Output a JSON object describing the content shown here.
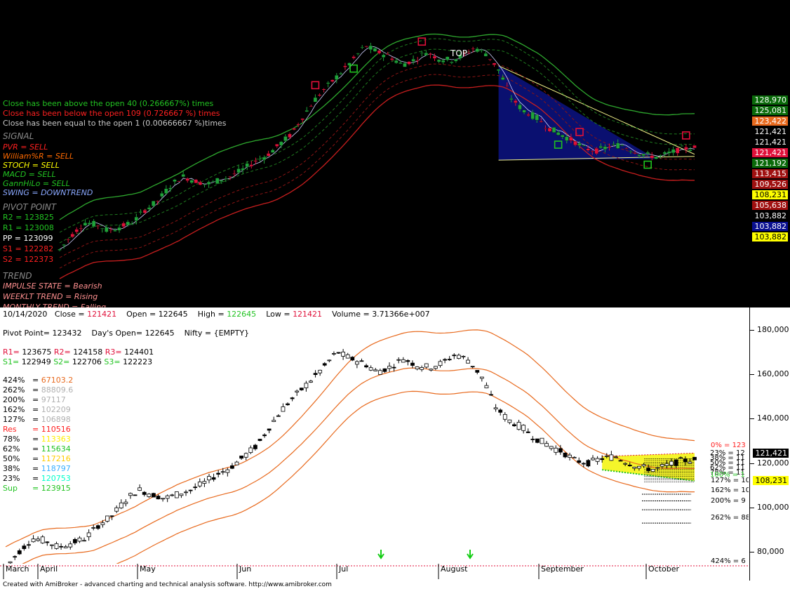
{
  "colors": {
    "up": "#1fa33a",
    "down": "#e0103a",
    "bb_outer": "#2ea82e",
    "bb_dash": "#1f7a1f",
    "red_band": "#c81e1e",
    "blue_fill": "#0a1070",
    "yellow": "#f5f52a",
    "orange": "#e86a1e"
  },
  "top_pane": {
    "stats": [
      {
        "text": "Close has been above the open 40 (0.266667%) times",
        "color": "#22c322"
      },
      {
        "text": "Close has been below the open 109 (0.726667 %) times",
        "color": "#ff2020"
      },
      {
        "text": "Close has been equal to the open 1 (0.00666667 %)times",
        "color": "#c8c8c8"
      }
    ],
    "signal_header": "SIGNAL",
    "signals": [
      {
        "text": "PVR = SELL",
        "color": "#ff2020"
      },
      {
        "text": "William%R = SELL",
        "color": "#ff6a00"
      },
      {
        "text": "STOCH = SELL",
        "color": "#ffff00"
      },
      {
        "text": "MACD = SELL",
        "color": "#22c322"
      },
      {
        "text": "GannHiLo = SELL",
        "color": "#22c322"
      },
      {
        "text": "SWING = DOWNTREND",
        "color": "#8aa8ff"
      }
    ],
    "pivot_header": "PIVOT POINT",
    "pivots": [
      {
        "text": "R2 = 123825",
        "color": "#22c322"
      },
      {
        "text": "R1 = 123008",
        "color": "#22c322"
      },
      {
        "text": "PP = 123099",
        "color": "#ffffff"
      },
      {
        "text": "S1 = 122282",
        "color": "#ff2020"
      },
      {
        "text": "S2 = 122373",
        "color": "#ff2020"
      }
    ],
    "trend_header": "TREND",
    "trends": [
      {
        "text": "IMPULSE STATE = Bearish",
        "color": "#ff9090"
      },
      {
        "text": "WEEKLT TREND = Rising",
        "color": "#ff9090"
      },
      {
        "text": "MONTHLY TREND = Falling",
        "color": "#ff9090"
      }
    ],
    "top_label": "TOP",
    "scale_tags": [
      {
        "text": "128,970",
        "bg": "#0a6a0a",
        "fg": "#ffffff"
      },
      {
        "text": "125,081",
        "bg": "#0a6a0a",
        "fg": "#ffffff"
      },
      {
        "text": "123,422",
        "bg": "#e86a1e",
        "fg": "#ffffff"
      },
      {
        "text": "121,421",
        "bg": "#000000",
        "fg": "#ffffff"
      },
      {
        "text": "121,421",
        "bg": "#000000",
        "fg": "#ffffff"
      },
      {
        "text": "121,421",
        "bg": "#e0103a",
        "fg": "#ffffff"
      },
      {
        "text": "121,192",
        "bg": "#0a6a0a",
        "fg": "#ffffff"
      },
      {
        "text": "113,415",
        "bg": "#a01010",
        "fg": "#ffffff"
      },
      {
        "text": "109,526",
        "bg": "#a01010",
        "fg": "#ffffff"
      },
      {
        "text": "108,231",
        "bg": "#ffff00",
        "fg": "#000000"
      },
      {
        "text": "105,638",
        "bg": "#a01010",
        "fg": "#ffffff"
      },
      {
        "text": "103,882",
        "bg": "#000000",
        "fg": "#ffffff"
      },
      {
        "text": "103,882",
        "bg": "#0a1090",
        "fg": "#ffffff"
      },
      {
        "text": "103,882",
        "bg": "#ffff00",
        "fg": "#000000"
      }
    ]
  },
  "bottom_pane": {
    "header": {
      "date": "10/14/2020",
      "close_label": "Close =",
      "close": "121421",
      "open_label": "Open =",
      "open": "122645",
      "high_label": "High =",
      "high": "122645",
      "low_label": "Low =",
      "low": "121421",
      "volume_label": "Volume =",
      "volume": "3.71366e+007"
    },
    "pivot_line": {
      "text1": "Pivot Point= 123432",
      "text2": "Day's Open= 122645",
      "text3": "Nifty = {EMPTY}"
    },
    "r_levels": [
      {
        "label": "R1=",
        "value": "123675"
      },
      {
        "label": "R2=",
        "value": "124158"
      },
      {
        "label": "R3=",
        "value": "124401"
      }
    ],
    "s_levels": [
      {
        "label": "S1=",
        "value": "122949"
      },
      {
        "label": "S2=",
        "value": "122706"
      },
      {
        "label": "S3=",
        "value": "122223"
      }
    ],
    "fib_levels": [
      {
        "label": "424%",
        "value": "67103.2",
        "color": "#e86a1e"
      },
      {
        "label": "262%",
        "value": "88809.6",
        "color": "#b0b0b0"
      },
      {
        "label": "200%",
        "value": "97117",
        "color": "#b0b0b0"
      },
      {
        "label": "162%",
        "value": "102209",
        "color": "#b0b0b0"
      },
      {
        "label": "127%",
        "value": "106898",
        "color": "#b0b0b0"
      },
      {
        "label": "Res",
        "value": "110516",
        "color": "#ff2020"
      },
      {
        "label": "78%",
        "value": "113363",
        "color": "#ffee00"
      },
      {
        "label": "62%",
        "value": "115634",
        "color": "#22c322"
      },
      {
        "label": "50%",
        "value": "117216",
        "color": "#ffcc00"
      },
      {
        "label": "38%",
        "value": "118797",
        "color": "#3ab0ff"
      },
      {
        "label": "23%",
        "value": "120753",
        "color": "#00ffcc"
      },
      {
        "label": "Sup",
        "value": "123915",
        "color": "#22c322"
      }
    ],
    "right_fibs": [
      {
        "text": "0% = 123",
        "color": "#ff2020"
      },
      {
        "text": "23% = 12",
        "color": "#000000"
      },
      {
        "text": "38% = 11",
        "color": "#000000"
      },
      {
        "text": "50% = 11",
        "color": "#000000"
      },
      {
        "text": "62% = 11",
        "color": "#000000"
      },
      {
        "text": "78% = 11",
        "color": "#000000"
      },
      {
        "text": "100% = 1",
        "color": "#22c322"
      },
      {
        "text": "127% = 10",
        "color": "#000000"
      },
      {
        "text": "162% = 10",
        "color": "#000000"
      },
      {
        "text": "200% = 9",
        "color": "#000000"
      },
      {
        "text": "262% = 88",
        "color": "#000000"
      },
      {
        "text": "424% = 6",
        "color": "#000000"
      }
    ],
    "y_ticks": [
      "180,000",
      "160,000",
      "140,000",
      "120,000",
      "100,000",
      "80,000"
    ],
    "price_tags": [
      {
        "text": "121,421",
        "bg": "#000000",
        "fg": "#ffffff"
      },
      {
        "text": "108,231",
        "bg": "#ffff00",
        "fg": "#000000"
      }
    ],
    "months": [
      "March",
      "April",
      "May",
      "Jun",
      "Jul",
      "August",
      "September",
      "October"
    ]
  },
  "footer_text": "Created with AmiBroker - advanced charting and technical analysis software. http://www.amibroker.com",
  "chart_data": {
    "type": "candlestick",
    "period": "daily, March 2020 – 10/14/2020",
    "axis_labels": [
      "March",
      "April",
      "May",
      "Jun",
      "Jul",
      "August",
      "September",
      "October"
    ],
    "ylim": [
      70000,
      190000
    ],
    "yticks": [
      80000,
      100000,
      120000,
      140000,
      160000,
      180000
    ],
    "close_path": [
      73000,
      80000,
      86000,
      85000,
      82000,
      84000,
      86000,
      92000,
      96000,
      103000,
      108000,
      106000,
      104000,
      106000,
      108000,
      111000,
      115000,
      118000,
      123000,
      128000,
      137000,
      145000,
      151000,
      157000,
      163000,
      170000,
      167000,
      165000,
      161000,
      163000,
      167000,
      164000,
      163000,
      165000,
      169000,
      166000,
      158000,
      145000,
      139000,
      136000,
      131000,
      128000,
      125000,
      121000,
      120000,
      122000,
      123000,
      120000,
      118000,
      117000,
      119000,
      121000,
      121421
    ],
    "last_close": 121421,
    "last_open": 122645,
    "last_high": 122645,
    "last_low": 121421
  }
}
